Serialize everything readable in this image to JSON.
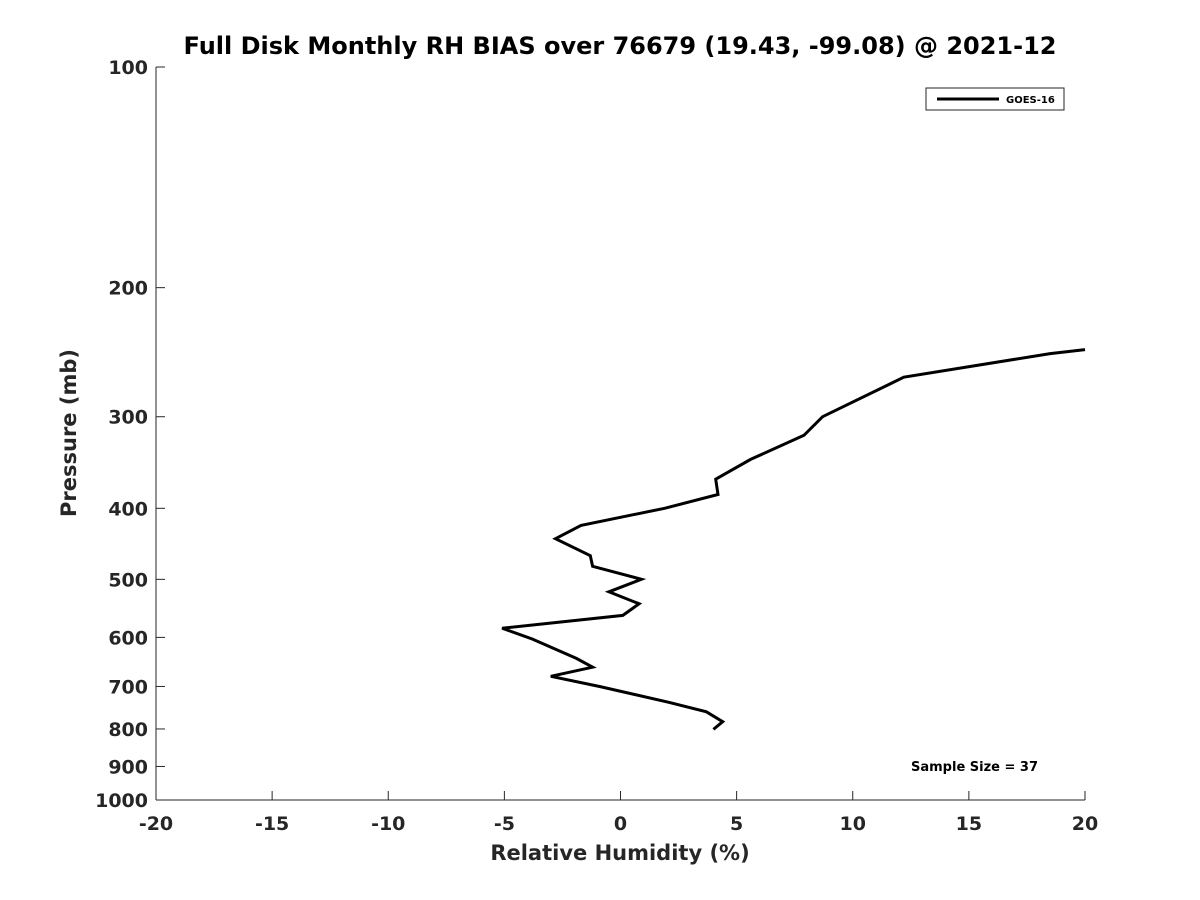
{
  "chart_data": {
    "type": "line",
    "title": "Full Disk Monthly RH BIAS over 76679 (19.43, -99.08) @ 2021-12",
    "xlabel": "Relative Humidity (%)",
    "ylabel": "Pressure (mb)",
    "xlim": [
      -20,
      20
    ],
    "ylim": [
      100,
      1000
    ],
    "y_scale": "log",
    "y_reversed": true,
    "x_ticks": [
      -20,
      -15,
      -10,
      -5,
      0,
      5,
      10,
      15,
      20
    ],
    "x_tick_labels": [
      "-20",
      "-15",
      "-10",
      "-5",
      "0",
      "5",
      "10",
      "15",
      "20"
    ],
    "y_ticks": [
      100,
      200,
      300,
      400,
      500,
      600,
      700,
      800,
      900,
      1000
    ],
    "y_tick_labels": [
      "100",
      "200",
      "300",
      "400",
      "500",
      "600",
      "700",
      "800",
      "900",
      "1000"
    ],
    "grid": false,
    "legend_position": "top-right",
    "series": [
      {
        "name": "GOES-16",
        "color": "#000000",
        "points": [
          {
            "x": 20.0,
            "p": 243
          },
          {
            "x": 18.5,
            "p": 246
          },
          {
            "x": 12.2,
            "p": 265
          },
          {
            "x": 8.7,
            "p": 300
          },
          {
            "x": 7.9,
            "p": 318
          },
          {
            "x": 5.6,
            "p": 343
          },
          {
            "x": 4.1,
            "p": 365
          },
          {
            "x": 4.2,
            "p": 383
          },
          {
            "x": 1.9,
            "p": 400
          },
          {
            "x": -1.7,
            "p": 422
          },
          {
            "x": -2.8,
            "p": 440
          },
          {
            "x": -1.3,
            "p": 464
          },
          {
            "x": -1.2,
            "p": 480
          },
          {
            "x": 0.9,
            "p": 500
          },
          {
            "x": -0.5,
            "p": 520
          },
          {
            "x": 0.8,
            "p": 540
          },
          {
            "x": 0.1,
            "p": 560
          },
          {
            "x": -5.1,
            "p": 583
          },
          {
            "x": -3.8,
            "p": 603
          },
          {
            "x": -1.9,
            "p": 641
          },
          {
            "x": -1.2,
            "p": 659
          },
          {
            "x": -3.0,
            "p": 678
          },
          {
            "x": -0.9,
            "p": 700
          },
          {
            "x": 2.1,
            "p": 736
          },
          {
            "x": 3.7,
            "p": 758
          },
          {
            "x": 4.4,
            "p": 782
          },
          {
            "x": 4.0,
            "p": 801
          }
        ]
      }
    ],
    "annotations": [
      "Sample Size = 37"
    ]
  }
}
